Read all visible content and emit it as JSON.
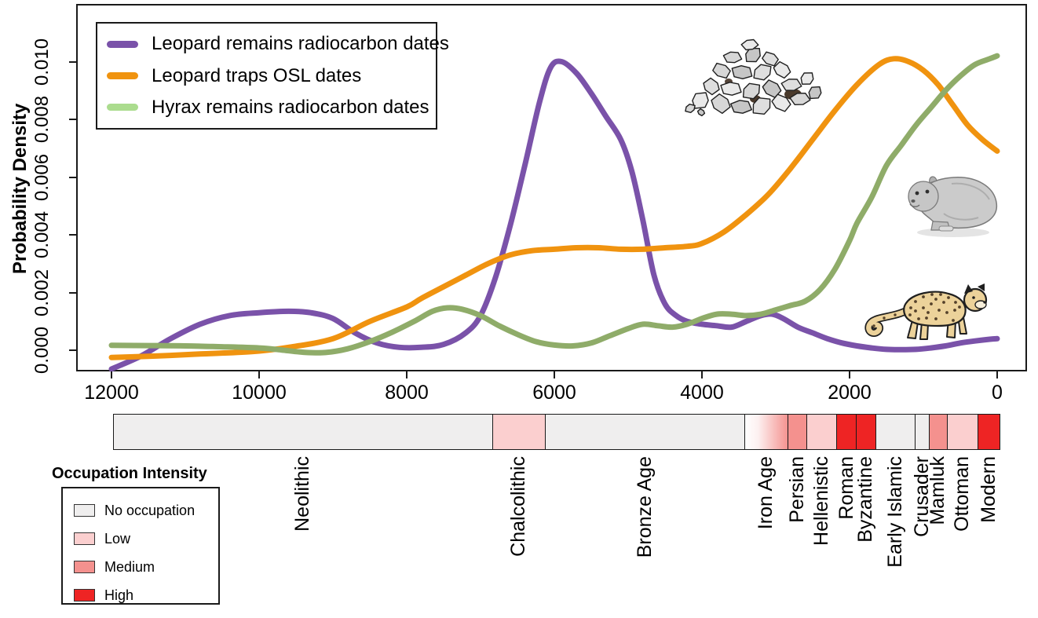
{
  "figure": {
    "plot": {
      "y_axis_title": "Probability Density",
      "y_ticks": [
        "0.000",
        "0.002",
        "0.004",
        "0.006",
        "0.008",
        "0.010"
      ],
      "x_ticks": [
        "12000",
        "10000",
        "8000",
        "6000",
        "4000",
        "2000",
        "0"
      ]
    },
    "illustrations": [
      {
        "name": "leopard-trap-rock-pile"
      },
      {
        "name": "hyrax"
      },
      {
        "name": "leopard"
      }
    ]
  },
  "series_legend": [
    {
      "label": "Leopard remains radiocarbon dates",
      "swatch_color": "#7a52a9"
    },
    {
      "label": "Leopard traps OSL dates",
      "swatch_color": "#f0930f"
    },
    {
      "label": "Hyrax remains radiocarbon dates",
      "swatch_color": "#abdc8e"
    }
  ],
  "chart_data": {
    "type": "line",
    "title": "",
    "xlabel": "",
    "ylabel": "Probability Density",
    "x_range": [
      12000,
      0
    ],
    "y_range": [
      0,
      0.01
    ],
    "grid": false,
    "legend_position": "top-left",
    "series": [
      {
        "name": "Leopard remains radiocarbon dates",
        "color": "#7a52a9",
        "points": [
          [
            12000,
            -0.00065
          ],
          [
            11600,
            -0.0002
          ],
          [
            11200,
            0.0004
          ],
          [
            10800,
            0.0009
          ],
          [
            10400,
            0.0012
          ],
          [
            10000,
            0.0013
          ],
          [
            9600,
            0.00135
          ],
          [
            9300,
            0.0013
          ],
          [
            9000,
            0.0011
          ],
          [
            8700,
            0.0006
          ],
          [
            8400,
            0.00025
          ],
          [
            8100,
            0.0001
          ],
          [
            7800,
            0.0001
          ],
          [
            7500,
            0.0002
          ],
          [
            7200,
            0.0006
          ],
          [
            7000,
            0.0012
          ],
          [
            6800,
            0.0025
          ],
          [
            6600,
            0.0043
          ],
          [
            6400,
            0.0064
          ],
          [
            6200,
            0.0086
          ],
          [
            6050,
            0.0098
          ],
          [
            5900,
            0.01
          ],
          [
            5700,
            0.0096
          ],
          [
            5500,
            0.0089
          ],
          [
            5300,
            0.0081
          ],
          [
            5100,
            0.0073
          ],
          [
            4950,
            0.0062
          ],
          [
            4800,
            0.0045
          ],
          [
            4650,
            0.0026
          ],
          [
            4500,
            0.0016
          ],
          [
            4350,
            0.0012
          ],
          [
            4200,
            0.001
          ],
          [
            4000,
            0.0009
          ],
          [
            3800,
            0.00085
          ],
          [
            3600,
            0.0008
          ],
          [
            3400,
            0.001
          ],
          [
            3200,
            0.0012
          ],
          [
            3050,
            0.00125
          ],
          [
            2900,
            0.0011
          ],
          [
            2700,
            0.0008
          ],
          [
            2500,
            0.0006
          ],
          [
            2300,
            0.0004
          ],
          [
            2100,
            0.00025
          ],
          [
            1900,
            0.00015
          ],
          [
            1700,
            8e-05
          ],
          [
            1500,
            3e-05
          ],
          [
            1300,
            2e-05
          ],
          [
            1100,
            3e-05
          ],
          [
            900,
            8e-05
          ],
          [
            700,
            0.00015
          ],
          [
            500,
            0.00025
          ],
          [
            300,
            0.00032
          ],
          [
            100,
            0.00038
          ],
          [
            0,
            0.0004
          ]
        ]
      },
      {
        "name": "Leopard traps OSL dates",
        "color": "#f0930f",
        "points": [
          [
            12000,
            -0.00025
          ],
          [
            11400,
            -0.0002
          ],
          [
            10800,
            -0.00013
          ],
          [
            10100,
            -5e-05
          ],
          [
            9600,
            0.0001
          ],
          [
            9000,
            0.0004
          ],
          [
            8500,
            0.001
          ],
          [
            8000,
            0.0015
          ],
          [
            7800,
            0.0018
          ],
          [
            7500,
            0.0022
          ],
          [
            7200,
            0.0026
          ],
          [
            6900,
            0.003
          ],
          [
            6600,
            0.0033
          ],
          [
            6300,
            0.00345
          ],
          [
            6000,
            0.0035
          ],
          [
            5700,
            0.00355
          ],
          [
            5400,
            0.00355
          ],
          [
            5100,
            0.0035
          ],
          [
            4800,
            0.0035
          ],
          [
            4500,
            0.00355
          ],
          [
            4200,
            0.0036
          ],
          [
            4000,
            0.0037
          ],
          [
            3700,
            0.0041
          ],
          [
            3400,
            0.0047
          ],
          [
            3100,
            0.0054
          ],
          [
            2800,
            0.0063
          ],
          [
            2500,
            0.0073
          ],
          [
            2200,
            0.0083
          ],
          [
            1900,
            0.0092
          ],
          [
            1600,
            0.0099
          ],
          [
            1400,
            0.0101
          ],
          [
            1200,
            0.01
          ],
          [
            1000,
            0.0097
          ],
          [
            800,
            0.0092
          ],
          [
            600,
            0.0085
          ],
          [
            400,
            0.0078
          ],
          [
            200,
            0.0073
          ],
          [
            0,
            0.0069
          ]
        ]
      },
      {
        "name": "Hyrax remains radiocarbon dates",
        "color": "#8fac69",
        "points": [
          [
            12000,
            0.00017
          ],
          [
            11500,
            0.00016
          ],
          [
            11000,
            0.00015
          ],
          [
            10500,
            0.00012
          ],
          [
            10000,
            8e-05
          ],
          [
            9700,
            1e-05
          ],
          [
            9400,
            -7e-05
          ],
          [
            9100,
            -8e-05
          ],
          [
            8800,
            5e-05
          ],
          [
            8500,
            0.0003
          ],
          [
            8200,
            0.00062
          ],
          [
            7900,
            0.001
          ],
          [
            7650,
            0.00135
          ],
          [
            7450,
            0.00147
          ],
          [
            7250,
            0.00142
          ],
          [
            7000,
            0.0012
          ],
          [
            6750,
            0.00085
          ],
          [
            6500,
            0.00055
          ],
          [
            6250,
            0.0003
          ],
          [
            6000,
            0.00018
          ],
          [
            5750,
            0.00015
          ],
          [
            5500,
            0.00025
          ],
          [
            5250,
            0.0005
          ],
          [
            5000,
            0.00075
          ],
          [
            4800,
            0.0009
          ],
          [
            4600,
            0.00085
          ],
          [
            4400,
            0.0008
          ],
          [
            4200,
            0.0009
          ],
          [
            4000,
            0.0011
          ],
          [
            3800,
            0.00125
          ],
          [
            3600,
            0.00125
          ],
          [
            3400,
            0.0012
          ],
          [
            3200,
            0.00125
          ],
          [
            3000,
            0.0014
          ],
          [
            2800,
            0.00155
          ],
          [
            2600,
            0.0017
          ],
          [
            2400,
            0.0021
          ],
          [
            2200,
            0.0028
          ],
          [
            2000,
            0.0038
          ],
          [
            1900,
            0.0044
          ],
          [
            1700,
            0.0053
          ],
          [
            1500,
            0.0064
          ],
          [
            1300,
            0.0071
          ],
          [
            1100,
            0.0078
          ],
          [
            900,
            0.0084
          ],
          [
            700,
            0.009
          ],
          [
            500,
            0.0095
          ],
          [
            300,
            0.0099
          ],
          [
            100,
            0.0101
          ],
          [
            0,
            0.0102
          ]
        ]
      }
    ]
  },
  "timeline": {
    "segments": [
      {
        "label": "Neolithic",
        "intensity": "none",
        "from": 11980,
        "to": 6840
      },
      {
        "label": "Chalcolithic",
        "intensity": "low",
        "from": 6840,
        "to": 6130
      },
      {
        "label": "Bronze Age",
        "intensity": "none",
        "from": 6130,
        "to": 3430
      },
      {
        "label": "Iron Age",
        "intensity": "fade",
        "from": 3430,
        "to": 2840
      },
      {
        "label": "Persian",
        "intensity": "medium",
        "from": 2840,
        "to": 2585
      },
      {
        "label": "Hellenistic",
        "intensity": "low",
        "from": 2585,
        "to": 2180
      },
      {
        "label": "Roman",
        "intensity": "high",
        "from": 2180,
        "to": 1915
      },
      {
        "label": "Byzantine",
        "intensity": "high",
        "from": 1915,
        "to": 1650
      },
      {
        "label": "Early Islamic",
        "intensity": "none",
        "from": 1650,
        "to": 1117
      },
      {
        "label": "Crusader",
        "intensity": "none",
        "from": 1117,
        "to": 926
      },
      {
        "label": "Mamluk",
        "intensity": "medium",
        "from": 926,
        "to": 681
      },
      {
        "label": "Ottoman",
        "intensity": "low",
        "from": 681,
        "to": 266
      },
      {
        "label": "Modern",
        "intensity": "high",
        "from": 266,
        "to": -30
      }
    ]
  },
  "occupation_legend": {
    "title": "Occupation Intensity",
    "items": [
      {
        "label": "No occupation",
        "level": "none"
      },
      {
        "label": "Low",
        "level": "low"
      },
      {
        "label": "Medium",
        "level": "medium"
      },
      {
        "label": "High",
        "level": "high"
      }
    ],
    "colors": {
      "none": "#efeeee",
      "low": "#fbcfcf",
      "medium": "#f4918e",
      "high": "#ee2424"
    }
  }
}
